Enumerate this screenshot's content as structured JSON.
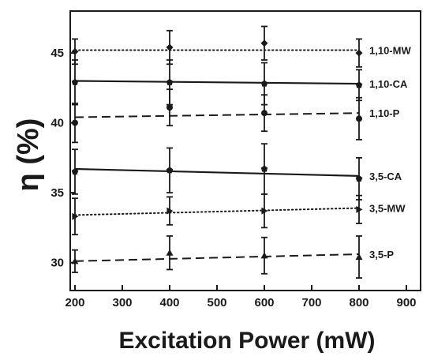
{
  "chart_data": {
    "type": "scatter",
    "xlabel": "Excitation Power (mW)",
    "ylabel": "η (%)",
    "xlim": [
      190,
      930
    ],
    "ylim": [
      28,
      48
    ],
    "xticks": [
      200,
      300,
      400,
      500,
      600,
      700,
      800,
      900
    ],
    "yticks": [
      30,
      35,
      40,
      45
    ],
    "grid": false,
    "x": [
      200,
      400,
      600,
      800
    ],
    "series": [
      {
        "name": "1,10-MW",
        "marker": "diamond",
        "line": "dotted",
        "values": [
          45.1,
          45.4,
          45.7,
          45.0
        ],
        "errors": [
          0.9,
          1.2,
          1.2,
          1.0
        ],
        "fit": [
          45.2,
          45.2
        ]
      },
      {
        "name": "1,10-CA",
        "marker": "pentagon",
        "line": "solid",
        "values": [
          42.9,
          42.9,
          42.8,
          42.7
        ],
        "errors": [
          1.6,
          1.6,
          1.5,
          1.1
        ],
        "fit": [
          43.0,
          42.8
        ]
      },
      {
        "name": "1,10-P",
        "marker": "circle",
        "line": "dashed",
        "values": [
          40.0,
          41.1,
          40.7,
          40.3
        ],
        "errors": [
          1.4,
          1.3,
          1.3,
          1.5
        ],
        "fit": [
          40.4,
          40.7
        ]
      },
      {
        "name": "3,5-CA",
        "marker": "pentagon",
        "line": "solid",
        "values": [
          36.5,
          36.6,
          36.7,
          36.0
        ],
        "errors": [
          1.6,
          1.6,
          1.8,
          1.5
        ],
        "fit": [
          36.7,
          36.2
        ]
      },
      {
        "name": "3,5-MW",
        "marker": "triangle-right",
        "line": "dotted",
        "values": [
          33.3,
          33.7,
          33.7,
          33.8
        ],
        "errors": [
          1.3,
          1.0,
          1.2,
          1.0
        ],
        "fit": [
          33.4,
          33.9
        ]
      },
      {
        "name": "3,5-P",
        "marker": "triangle-up",
        "line": "dashed",
        "values": [
          30.1,
          30.7,
          30.5,
          30.4
        ],
        "errors": [
          0.8,
          1.2,
          1.3,
          1.5
        ],
        "fit": [
          30.1,
          30.6
        ]
      }
    ]
  }
}
